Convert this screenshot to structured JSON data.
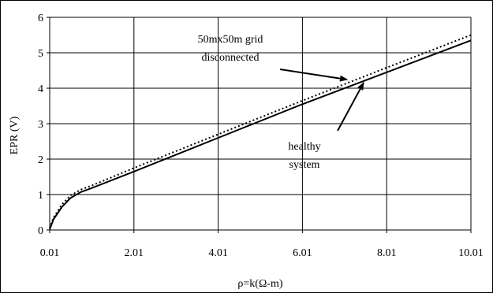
{
  "chart_data": {
    "type": "line",
    "title": "",
    "xlabel": "ρ=k(Ω-m)",
    "ylabel": "EPR (V)",
    "xlim": [
      0.01,
      10.01
    ],
    "ylim": [
      0,
      6
    ],
    "x_ticks": [
      "0.01",
      "2.01",
      "4.01",
      "6.01",
      "8.01",
      "10.01"
    ],
    "x_tick_values": [
      0.01,
      2.01,
      4.01,
      6.01,
      8.01,
      10.01
    ],
    "y_ticks": [
      "0",
      "1",
      "2",
      "3",
      "4",
      "5",
      "6"
    ],
    "y_tick_values": [
      0,
      1,
      2,
      3,
      4,
      5,
      6
    ],
    "grid": true,
    "series": [
      {
        "style": "solid",
        "x": [
          0.01,
          0.1,
          0.3,
          0.5,
          0.75,
          1.0,
          2.01,
          4.01,
          6.01,
          8.01,
          10.01
        ],
        "y": [
          0.02,
          0.3,
          0.65,
          0.9,
          1.07,
          1.18,
          1.65,
          2.6,
          3.55,
          4.45,
          5.35
        ]
      },
      {
        "style": "dotted",
        "x": [
          0.01,
          0.1,
          0.3,
          0.5,
          0.75,
          1.0,
          2.01,
          4.01,
          6.01,
          8.01,
          10.01
        ],
        "y": [
          0.05,
          0.35,
          0.72,
          0.97,
          1.14,
          1.25,
          1.75,
          2.7,
          3.65,
          4.58,
          5.5
        ]
      }
    ],
    "annotations": [
      {
        "lines": [
          "50mx50m grid",
          "disconnected"
        ],
        "target_series": 1
      },
      {
        "lines": [
          "healthy",
          "system"
        ],
        "target_series": 0
      }
    ]
  }
}
